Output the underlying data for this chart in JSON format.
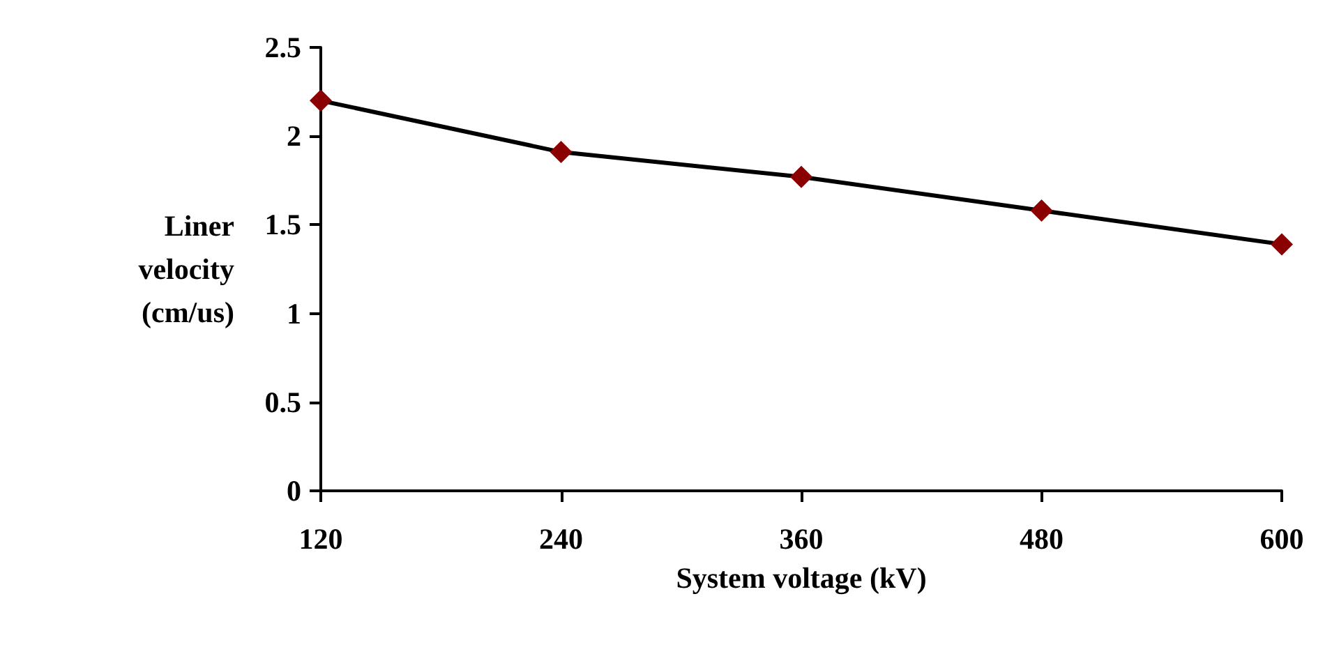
{
  "chart_data": {
    "type": "line",
    "xlabel": "System voltage (kV)",
    "ylabel": "Liner\nvelocity\n(cm/us)",
    "x": [
      120,
      240,
      360,
      480,
      600
    ],
    "series": [
      {
        "color": "#000000",
        "colors": [
          "#8b0000",
          "#8b0000",
          "#8b0000",
          "#8b0000",
          "#8b0000"
        ],
        "values": [
          2.2,
          1.91,
          1.77,
          1.58,
          1.39
        ]
      }
    ],
    "marker": "diamond",
    "line_style": "solid",
    "xlim": [
      120,
      600
    ],
    "xticks": [
      120,
      240,
      360,
      480,
      600
    ],
    "ylim": [
      0,
      2.5
    ],
    "yticks": [
      0,
      0.5,
      1,
      1.5,
      2,
      2.5
    ],
    "grid": false
  }
}
